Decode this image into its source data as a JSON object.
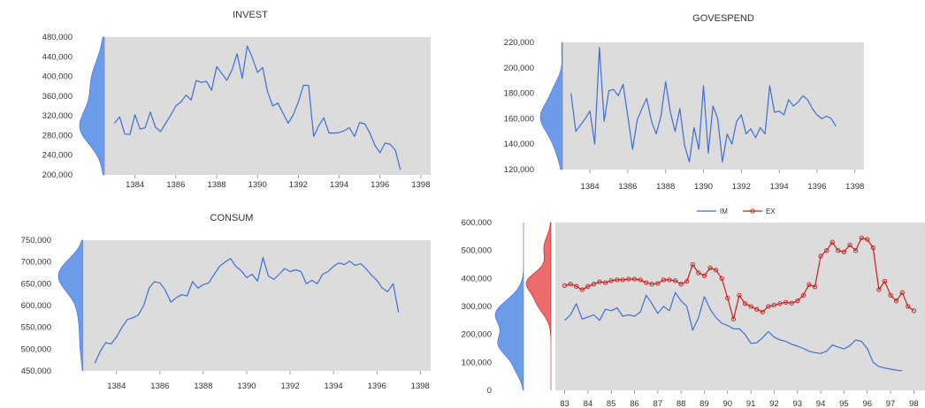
{
  "colors": {
    "plot_bg": "#dcdcdc",
    "line_blue": "#3e6ed8",
    "line_red": "#c81e1e",
    "dist_blue": "#6c9bea",
    "dist_red": "#ea6c6c",
    "axis": "#777777"
  },
  "chart_data": [
    {
      "id": "invest",
      "type": "line",
      "title": "INVEST",
      "y_ticks": [
        "480,000",
        "440,000",
        "400,000",
        "360,000",
        "320,000",
        "280,000",
        "240,000",
        "200,000"
      ],
      "ylim": [
        200000,
        480000
      ],
      "x_ticks": [
        "1384",
        "1386",
        "1388",
        "1390",
        "1392",
        "1394",
        "1396",
        "1398"
      ],
      "x_tick_values": [
        1384,
        1386,
        1388,
        1390,
        1392,
        1394,
        1396,
        1398
      ],
      "xlim": [
        1382.5,
        1398.4
      ],
      "grid": false,
      "marginal_distribution": "left",
      "series": [
        {
          "color": "#3e6ed8",
          "x_start": 1383,
          "x_step": 0.25,
          "values": [
            305000,
            318000,
            283000,
            282000,
            322000,
            293000,
            296000,
            328000,
            297000,
            288000,
            305000,
            321000,
            340000,
            348000,
            362000,
            352000,
            392000,
            388000,
            390000,
            372000,
            420000,
            406000,
            392000,
            413000,
            446000,
            396000,
            462000,
            438000,
            408000,
            418000,
            368000,
            340000,
            346000,
            325000,
            305000,
            322000,
            348000,
            382000,
            382000,
            278000,
            300000,
            316000,
            285000,
            285000,
            286000,
            290000,
            296000,
            278000,
            306000,
            304000,
            285000,
            260000,
            245000,
            265000,
            262000,
            250000,
            210000
          ]
        }
      ]
    },
    {
      "id": "govespend",
      "type": "line",
      "title": "GOVESPEND",
      "y_ticks": [
        "220,000",
        "200,000",
        "180,000",
        "160,000",
        "140,000",
        "120,000"
      ],
      "ylim": [
        120000,
        220000
      ],
      "x_ticks": [
        "1384",
        "1386",
        "1388",
        "1390",
        "1392",
        "1394",
        "1396",
        "1398"
      ],
      "x_tick_values": [
        1384,
        1386,
        1388,
        1390,
        1392,
        1394,
        1396,
        1398
      ],
      "xlim": [
        1382.5,
        1398.4
      ],
      "grid": false,
      "marginal_distribution": "left",
      "series": [
        {
          "color": "#3e6ed8",
          "x_start": 1383,
          "x_step": 0.25,
          "values": [
            180000,
            150000,
            155000,
            160000,
            166000,
            140000,
            216000,
            158000,
            182000,
            183000,
            178000,
            187000,
            162000,
            136000,
            159000,
            168000,
            176000,
            158000,
            148000,
            162000,
            189000,
            165000,
            150000,
            168000,
            139000,
            126000,
            153000,
            136000,
            186000,
            133000,
            170000,
            160000,
            126000,
            148000,
            140000,
            158000,
            163000,
            148000,
            152000,
            145000,
            153000,
            148000,
            186000,
            165000,
            166000,
            163000,
            175000,
            170000,
            173000,
            178000,
            175000,
            168000,
            163000,
            160000,
            162000,
            160000,
            154000
          ]
        }
      ]
    },
    {
      "id": "consum",
      "type": "line",
      "title": "CONSUM",
      "y_ticks": [
        "750,000",
        "700,000",
        "650,000",
        "600,000",
        "550,000",
        "500,000",
        "450,000"
      ],
      "ylim": [
        450000,
        750000
      ],
      "x_ticks": [
        "1384",
        "1386",
        "1388",
        "1390",
        "1392",
        "1394",
        "1396",
        "1398"
      ],
      "x_tick_values": [
        1384,
        1386,
        1388,
        1390,
        1392,
        1394,
        1396,
        1398
      ],
      "xlim": [
        1382.5,
        1398.4
      ],
      "grid": false,
      "marginal_distribution": "left",
      "series": [
        {
          "color": "#3e6ed8",
          "x_start": 1383,
          "x_step": 0.25,
          "values": [
            468000,
            495000,
            515000,
            512000,
            528000,
            550000,
            568000,
            572000,
            578000,
            600000,
            640000,
            655000,
            652000,
            635000,
            608000,
            618000,
            625000,
            622000,
            655000,
            640000,
            648000,
            652000,
            672000,
            690000,
            700000,
            708000,
            690000,
            680000,
            664000,
            672000,
            656000,
            710000,
            668000,
            660000,
            672000,
            685000,
            678000,
            682000,
            678000,
            650000,
            658000,
            650000,
            672000,
            678000,
            690000,
            698000,
            694000,
            702000,
            692000,
            696000,
            685000,
            670000,
            658000,
            640000,
            632000,
            650000,
            584000
          ]
        }
      ]
    },
    {
      "id": "im-ex",
      "type": "line",
      "title": "",
      "legend": [
        "IM",
        "EX"
      ],
      "legend_position": "top",
      "y_ticks": [
        "600,000",
        "500,000",
        "400,000",
        "300,000",
        "200,000",
        "100,000",
        "0"
      ],
      "ylim": [
        0,
        600000
      ],
      "x_ticks": [
        "83",
        "84",
        "85",
        "86",
        "87",
        "88",
        "89",
        "90",
        "91",
        "92",
        "93",
        "94",
        "95",
        "96",
        "97",
        "98"
      ],
      "x_tick_values": [
        83,
        84,
        85,
        86,
        87,
        88,
        89,
        90,
        91,
        92,
        93,
        94,
        95,
        96,
        97,
        98
      ],
      "xlim": [
        82.6,
        98.4
      ],
      "grid": false,
      "marginal_distribution": "left",
      "series": [
        {
          "name": "IM",
          "color": "#3e6ed8",
          "x_start": 83,
          "x_step": 0.25,
          "values": [
            250000,
            270000,
            310000,
            255000,
            262000,
            270000,
            250000,
            290000,
            285000,
            295000,
            265000,
            270000,
            265000,
            280000,
            340000,
            310000,
            275000,
            300000,
            285000,
            350000,
            320000,
            300000,
            215000,
            260000,
            335000,
            290000,
            260000,
            240000,
            232000,
            220000,
            220000,
            200000,
            168000,
            170000,
            188000,
            210000,
            190000,
            180000,
            175000,
            165000,
            158000,
            150000,
            140000,
            135000,
            132000,
            140000,
            162000,
            155000,
            148000,
            160000,
            180000,
            175000,
            150000,
            100000,
            85000,
            80000,
            76000,
            72000,
            70000
          ]
        },
        {
          "name": "EX",
          "color": "#c81e1e",
          "x_start": 83,
          "x_step": 0.25,
          "values": [
            375000,
            380000,
            372000,
            360000,
            372000,
            380000,
            388000,
            385000,
            392000,
            395000,
            395000,
            398000,
            398000,
            395000,
            385000,
            380000,
            382000,
            395000,
            395000,
            392000,
            380000,
            390000,
            450000,
            420000,
            410000,
            438000,
            430000,
            400000,
            330000,
            255000,
            340000,
            310000,
            300000,
            290000,
            280000,
            300000,
            305000,
            310000,
            315000,
            312000,
            320000,
            340000,
            378000,
            370000,
            480000,
            500000,
            530000,
            500000,
            495000,
            520000,
            500000,
            545000,
            540000,
            510000,
            360000,
            390000,
            340000,
            320000,
            350000,
            300000,
            285000
          ]
        }
      ]
    }
  ]
}
